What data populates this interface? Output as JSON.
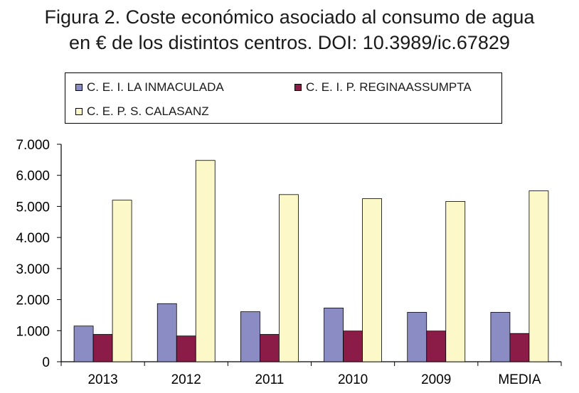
{
  "figure": {
    "title_line1": "Figura 2. Coste económico asociado al consumo de agua",
    "title_line2": "en € de los distintos centros. DOI: 10.3989/ic.67829"
  },
  "chart_data": {
    "type": "bar",
    "title": "Figura 2. Coste económico asociado al consumo de agua en € de los distintos centros. DOI: 10.3989/ic.67829",
    "categories": [
      "2013",
      "2012",
      "2011",
      "2010",
      "2009",
      "MEDIA"
    ],
    "series": [
      {
        "name": "C. E. I. LA INMACULADA",
        "color": "#8c8cc4",
        "values": [
          1150,
          1870,
          1610,
          1730,
          1590,
          1590
        ]
      },
      {
        "name": "C. E. I. P. REGINAASSUMPTA",
        "color": "#8b1c47",
        "values": [
          880,
          830,
          880,
          990,
          990,
          910
        ]
      },
      {
        "name": "C. E. P. S. CALASANZ",
        "color": "#fcf8c8",
        "values": [
          5200,
          6480,
          5380,
          5250,
          5160,
          5500
        ]
      }
    ],
    "ylim": [
      0,
      7000
    ],
    "yticks": [
      0,
      1000,
      2000,
      3000,
      4000,
      5000,
      6000,
      7000
    ],
    "ytick_labels": [
      "0",
      "1.000",
      "2.000",
      "3.000",
      "4.000",
      "5.000",
      "6.000",
      "7.000"
    ],
    "xlabel": "",
    "ylabel": "",
    "grid": false,
    "legend": "top"
  }
}
